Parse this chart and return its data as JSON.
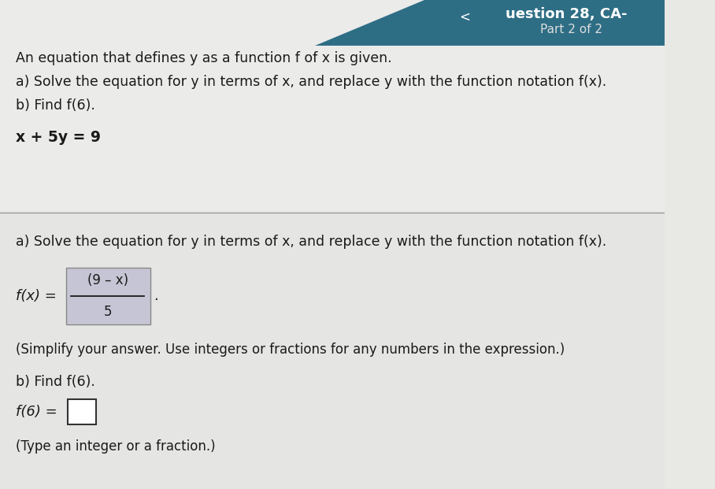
{
  "bg_color": "#e8e8e5",
  "header_bg": "#2e6e85",
  "header_text": "uestion 28, CA-",
  "part_text": "Part 2 of 2",
  "line1": "An equation that defines y as a function f of x is given.",
  "line2a": "a) Solve the equation for y in terms of x, and replace y with the function notation f(x).",
  "line2b": "b) Find f(6).",
  "equation": "x + 5y = 9",
  "section_a_label": "a) Solve the equation for y in terms of x, and replace y with the function notation f(x).",
  "numerator": "(9 – x)",
  "denominator": "5",
  "simplify_note": "(Simplify your answer. Use integers or fractions for any numbers in the expression.)",
  "find_f6": "b) Find f(6).",
  "type_note": "(Type an integer or a fraction.)",
  "fraction_box_color": "#c5c5d5",
  "answer_box_color": "#ffffff",
  "dark_text": "#1a1a1a",
  "header_text_color": "#ffffff",
  "part_text_color": "#dddddd",
  "divider_color": "#999999"
}
